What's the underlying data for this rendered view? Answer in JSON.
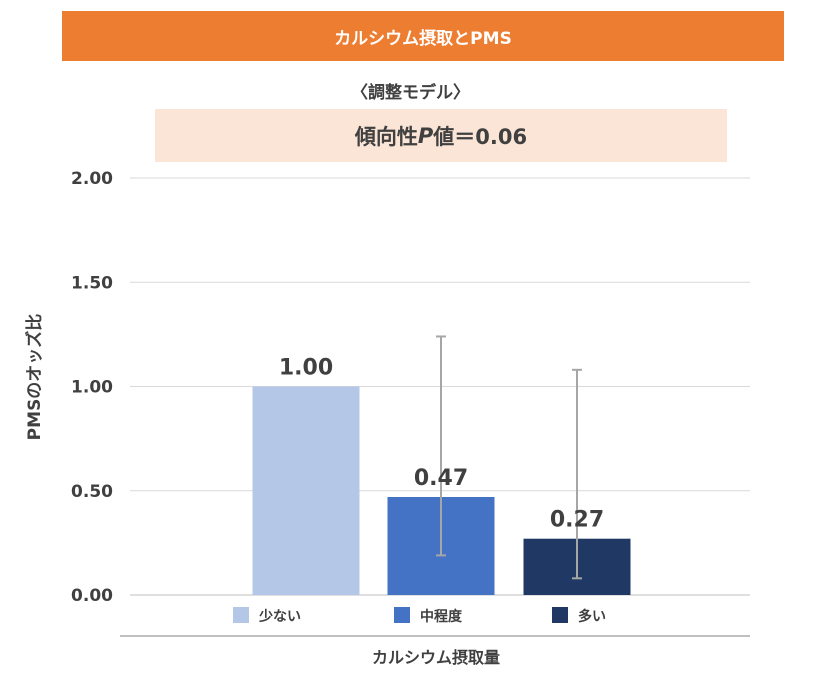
{
  "header": {
    "banner_title": "カルシウム摂取とPMS",
    "subtitle": "〈調整モデル〉",
    "trend_prefix": "傾向性",
    "trend_p": "P",
    "trend_suffix": "値＝0.06"
  },
  "colors": {
    "banner": "#ED7D31",
    "trend_box": "#FBE5D6",
    "series": [
      "#B4C7E7",
      "#4472C4",
      "#203864"
    ],
    "error_bar": "#A6A6A6",
    "grid": "#D9D9D9"
  },
  "chart_data": {
    "type": "bar",
    "categories": [
      "少ない",
      "中程度",
      "多い"
    ],
    "values": [
      1.0,
      0.47,
      0.27
    ],
    "value_labels": [
      "1.00",
      "0.47",
      "0.27"
    ],
    "error_low": [
      null,
      0.19,
      0.08
    ],
    "error_high": [
      null,
      1.24,
      1.08
    ],
    "ylabel": "PMSのオッズ比",
    "xlabel": "カルシウム摂取量",
    "ylim": [
      0,
      2
    ],
    "yticks": [
      0,
      0.5,
      1.0,
      1.5,
      2.0
    ],
    "ytick_labels": [
      "0.00",
      "0.50",
      "1.00",
      "1.50",
      "2.00"
    ],
    "grid": true,
    "legend": "bottom"
  }
}
